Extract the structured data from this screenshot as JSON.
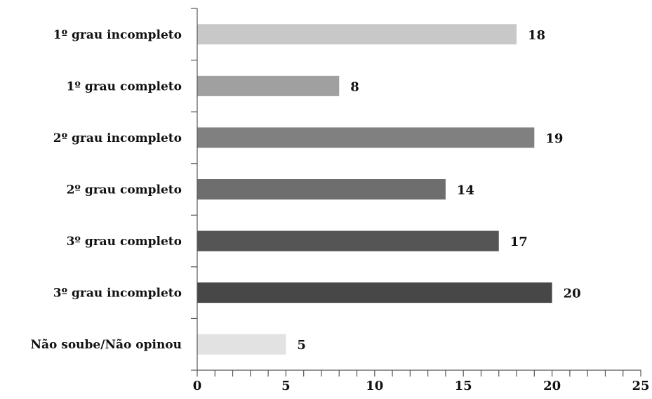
{
  "chart_data": {
    "type": "bar",
    "orientation": "horizontal",
    "title": "",
    "xlabel": "",
    "ylabel": "",
    "categories": [
      "1º grau incompleto",
      "1º grau completo",
      "2º grau incompleto",
      "2º grau completo",
      "3º grau completo",
      "3º grau incompleto",
      "Não soube/Não opinou"
    ],
    "values": [
      18,
      8,
      19,
      14,
      17,
      20,
      5
    ],
    "colors": [
      "#c8c8c8",
      "#a0a0a0",
      "#808080",
      "#6e6e6e",
      "#555555",
      "#474747",
      "#e2e2e2"
    ],
    "xlim": [
      0,
      25
    ],
    "xticks": [
      0,
      5,
      10,
      15,
      20,
      25
    ],
    "grid": false,
    "legend": false
  }
}
